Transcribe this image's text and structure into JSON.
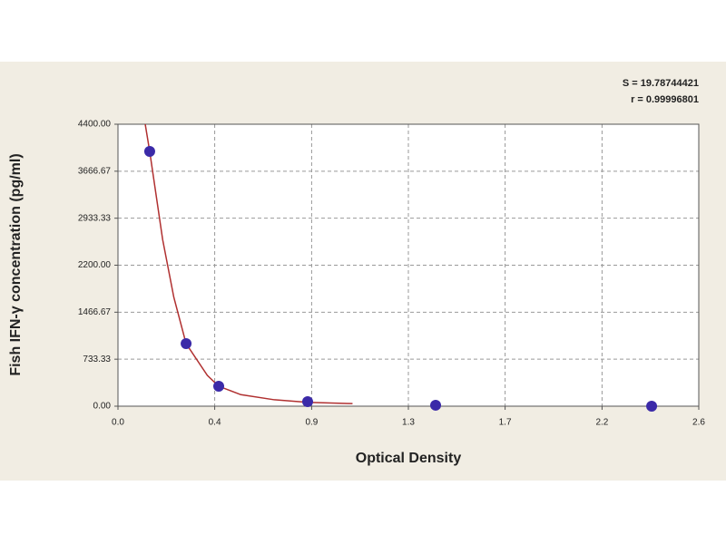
{
  "chart_data": {
    "type": "scatter",
    "xlabel": "Optical Density",
    "ylabel": "Fish IFN-γ concentration (pg/ml)",
    "annotations": [
      "S = 19.78744421",
      "r = 0.99996801"
    ],
    "xlim": [
      0,
      2.6
    ],
    "ylim": [
      0,
      4400
    ],
    "xticks": [
      {
        "value": 0,
        "label": "0.0"
      },
      {
        "value": 0.433,
        "label": "0.4"
      },
      {
        "value": 0.867,
        "label": "0.9"
      },
      {
        "value": 1.3,
        "label": "1.3"
      },
      {
        "value": 1.733,
        "label": "1.7"
      },
      {
        "value": 2.167,
        "label": "2.2"
      },
      {
        "value": 2.6,
        "label": "2.6"
      }
    ],
    "yticks": [
      {
        "value": 0,
        "label": "0.00"
      },
      {
        "value": 733.33,
        "label": "733.33"
      },
      {
        "value": 1466.67,
        "label": "1466.67"
      },
      {
        "value": 2200,
        "label": "2200.00"
      },
      {
        "value": 2933.33,
        "label": "2933.33"
      },
      {
        "value": 3666.67,
        "label": "3666.67"
      },
      {
        "value": 4400,
        "label": "4400.00"
      }
    ],
    "grid": true,
    "series": [
      {
        "type": "scatter",
        "color": "#3b2aa8",
        "x": [
          0.142,
          0.305,
          0.451,
          0.849,
          1.422,
          2.389
        ],
        "values": [
          3976,
          976,
          311,
          70,
          15,
          0
        ]
      },
      {
        "type": "line",
        "color": "#b03030",
        "x": [
          0.122,
          0.142,
          0.2,
          0.25,
          0.305,
          0.4,
          0.451,
          0.55,
          0.7,
          0.849,
          1.05
        ],
        "values": [
          4400,
          3976,
          2600,
          1700,
          976,
          480,
          311,
          180,
          100,
          60,
          40
        ]
      }
    ]
  }
}
